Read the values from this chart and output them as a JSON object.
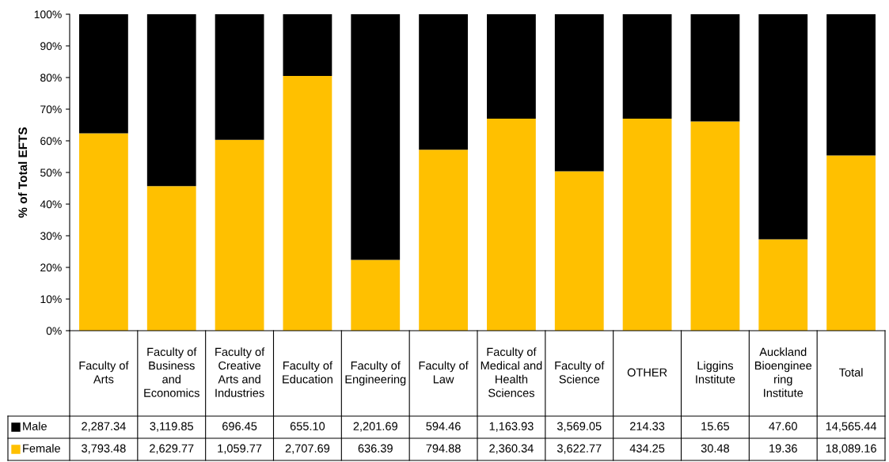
{
  "chart_data": {
    "type": "bar",
    "stacked": true,
    "ylabel": "% of Total EFTS",
    "categories": [
      "Faculty of Arts",
      "Faculty of Business and Economics",
      "Faculty of Creative Arts and Industries",
      "Faculty of Education",
      "Faculty of Engineering",
      "Faculty of Law",
      "Faculty of Medical and Health Sciences",
      "Faculty of Science",
      "OTHER",
      "Liggins Institute",
      "Auckland Bioengineering Institute",
      "Total"
    ],
    "series": [
      {
        "name": "Female",
        "color": "#ffc000",
        "values": [
          62.4,
          45.7,
          60.3,
          80.5,
          22.4,
          57.2,
          67.0,
          50.4,
          67.0,
          66.1,
          28.9,
          55.4
        ]
      },
      {
        "name": "Male",
        "color": "#000000",
        "values": [
          37.6,
          54.3,
          39.7,
          19.5,
          77.6,
          42.8,
          33.0,
          49.6,
          33.0,
          33.9,
          71.1,
          44.6
        ]
      }
    ],
    "annotations": [
      "2,287.34",
      "3,119.85",
      "696.45",
      "655.10",
      "2,201.69",
      "594.46",
      "1,163.93",
      "3,569.05",
      "214.33",
      "15.65",
      "47.60",
      "14,565.44",
      "3,793.48",
      "2,629.77",
      "1,059.77",
      "2,707.69",
      "636.39",
      "794.88",
      "2,360.34",
      "3,622.77",
      "434.25",
      "30.48",
      "19.36",
      "18,089.16"
    ],
    "ylim": [
      0,
      100
    ],
    "yticks": [
      {
        "value": 0,
        "label": "0%"
      },
      {
        "value": 10,
        "label": "10%"
      },
      {
        "value": 20,
        "label": "20%"
      },
      {
        "value": 30,
        "label": "30%"
      },
      {
        "value": 40,
        "label": "40%"
      },
      {
        "value": 50,
        "label": "50%"
      },
      {
        "value": 60,
        "label": "60%"
      },
      {
        "value": 70,
        "label": "70%"
      },
      {
        "value": 80,
        "label": "80%"
      },
      {
        "value": 90,
        "label": "90%"
      },
      {
        "value": 100,
        "label": "100%"
      }
    ],
    "grid": false,
    "legend": "bottom left"
  }
}
